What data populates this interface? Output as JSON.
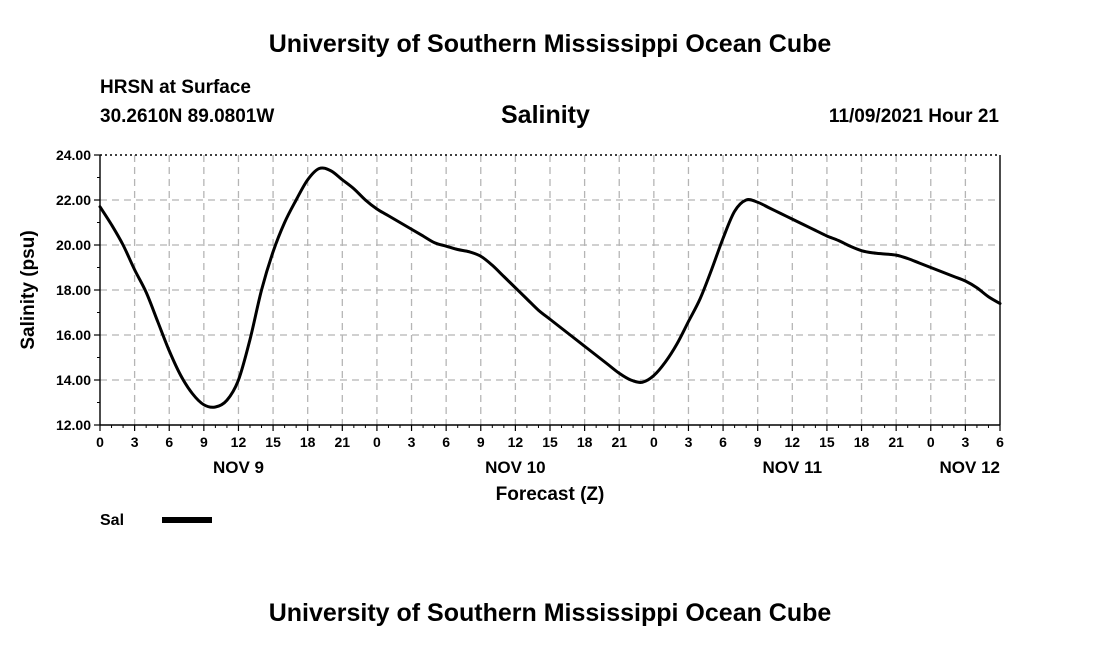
{
  "header": {
    "title": "University of Southern Mississippi Ocean Cube",
    "station": "HRSN at Surface",
    "coords": "30.2610N  89.0801W",
    "parameter": "Salinity",
    "datetime": "11/09/2021 Hour 21"
  },
  "footer": {
    "title": "University of Southern Mississippi Ocean Cube"
  },
  "chart_data": {
    "type": "line",
    "title": "Salinity",
    "xlabel": "Forecast (Z)",
    "ylabel": "Salinity (psu)",
    "ylim": [
      12,
      24
    ],
    "xlim": [
      0,
      78
    ],
    "grid": true,
    "y_ticks": [
      "12.00",
      "14.00",
      "16.00",
      "18.00",
      "20.00",
      "22.00",
      "24.00"
    ],
    "x_tick_labels": [
      "0",
      "3",
      "6",
      "9",
      "12",
      "15",
      "18",
      "21",
      "0",
      "3",
      "6",
      "9",
      "12",
      "15",
      "18",
      "21",
      "0",
      "3",
      "6",
      "9",
      "12",
      "15",
      "18",
      "21",
      "0",
      "3",
      "6"
    ],
    "day_labels": [
      {
        "label": "NOV 9",
        "hour": 12
      },
      {
        "label": "NOV 10",
        "hour": 36
      },
      {
        "label": "NOV 11",
        "hour": 60
      },
      {
        "label": "NOV 12",
        "hour": 78
      }
    ],
    "legend": [
      {
        "name": "Sal",
        "color": "#000000"
      }
    ],
    "series": [
      {
        "name": "Sal",
        "x": [
          0,
          1,
          2,
          3,
          4,
          5,
          6,
          7,
          8,
          9,
          10,
          11,
          12,
          13,
          14,
          15,
          16,
          17,
          18,
          19,
          20,
          21,
          22,
          23,
          24,
          25,
          26,
          27,
          28,
          29,
          30,
          31,
          32,
          33,
          34,
          35,
          36,
          37,
          38,
          39,
          40,
          41,
          42,
          43,
          44,
          45,
          46,
          47,
          48,
          49,
          50,
          51,
          52,
          53,
          54,
          55,
          56,
          57,
          58,
          59,
          60,
          61,
          62,
          63,
          64,
          65,
          66,
          67,
          68,
          69,
          70,
          71,
          72,
          73,
          74,
          75,
          76,
          77,
          78
        ],
        "values": [
          21.7,
          20.9,
          20.0,
          18.9,
          17.9,
          16.6,
          15.3,
          14.2,
          13.4,
          12.9,
          12.8,
          13.1,
          14.0,
          15.8,
          18.0,
          19.7,
          21.0,
          22.0,
          22.9,
          23.4,
          23.3,
          22.9,
          22.5,
          22.0,
          21.6,
          21.3,
          21.0,
          20.7,
          20.4,
          20.1,
          19.95,
          19.8,
          19.7,
          19.5,
          19.1,
          18.6,
          18.1,
          17.6,
          17.1,
          16.7,
          16.3,
          15.9,
          15.5,
          15.1,
          14.7,
          14.3,
          14.0,
          13.9,
          14.2,
          14.8,
          15.6,
          16.6,
          17.6,
          18.9,
          20.3,
          21.5,
          22.0,
          21.9,
          21.65,
          21.4,
          21.15,
          20.9,
          20.65,
          20.4,
          20.2,
          19.95,
          19.75,
          19.65,
          19.6,
          19.55,
          19.4,
          19.2,
          19.0,
          18.8,
          18.6,
          18.4,
          18.1,
          17.7,
          17.4
        ]
      }
    ]
  }
}
